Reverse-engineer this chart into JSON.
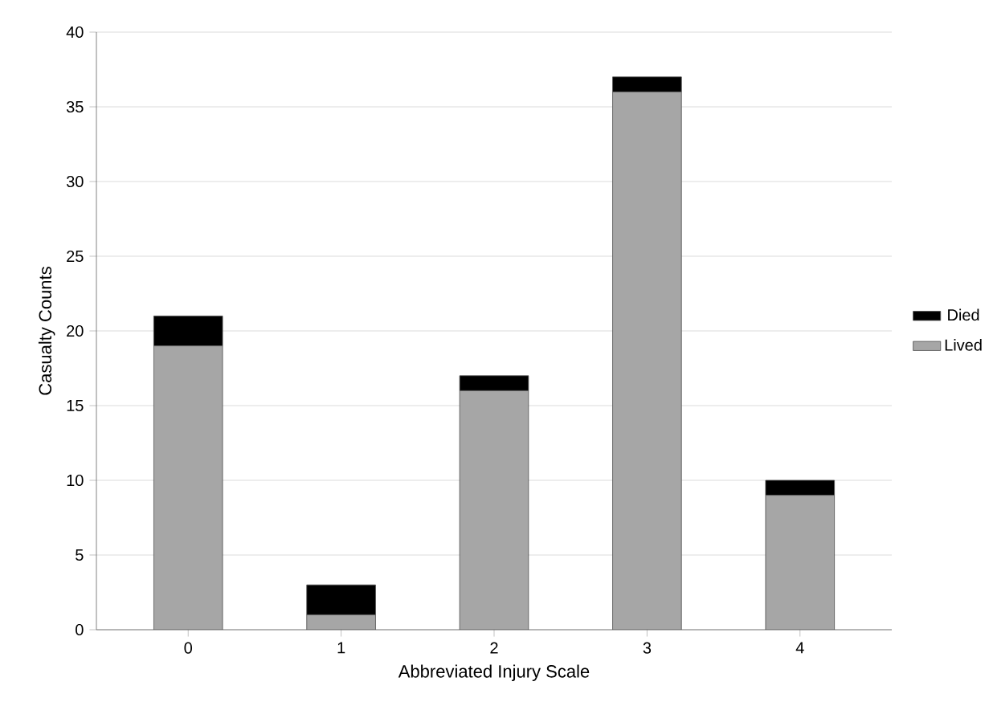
{
  "chart_data": {
    "type": "bar",
    "stacked": true,
    "xlabel": "Abbreviated Injury Scale",
    "ylabel": "Casualty Counts",
    "categories": [
      "0",
      "1",
      "2",
      "3",
      "4"
    ],
    "series": [
      {
        "name": "Lived",
        "color": "#a6a6a6",
        "values": [
          19,
          1,
          16,
          36,
          9
        ]
      },
      {
        "name": "Died",
        "color": "#000000",
        "values": [
          2,
          2,
          1,
          1,
          1
        ]
      }
    ],
    "ylim": [
      0,
      40
    ],
    "yticks": [
      0,
      5,
      10,
      15,
      20,
      25,
      30,
      35,
      40
    ],
    "grid": "y",
    "legend": "right"
  }
}
